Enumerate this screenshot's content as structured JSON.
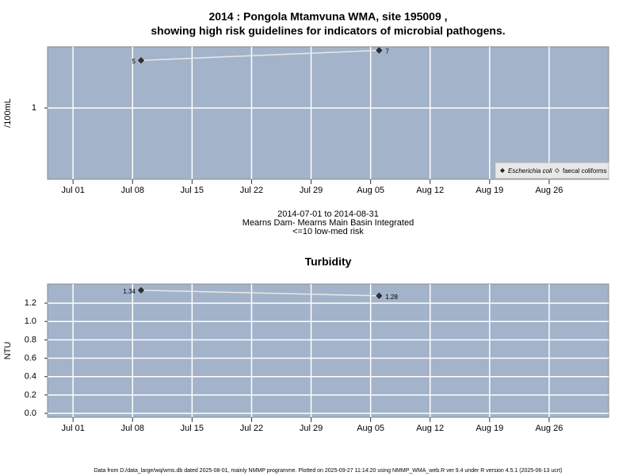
{
  "chart_data": [
    {
      "type": "line",
      "title": [
        "2014 : Pongola Mtamvuna WMA, site 195009 ,",
        "showing high risk guidelines for indicators of microbial pathogens."
      ],
      "ylabel": "/100mL",
      "x": [
        "2014-07-09",
        "2014-08-06"
      ],
      "series": [
        {
          "name": "Escherichia coli",
          "color": "#333333",
          "values": [
            5,
            7
          ]
        },
        {
          "name": "faecal coliforms",
          "color": "#ffffff",
          "values": [
            null,
            null
          ]
        }
      ],
      "xlim": [
        "2014-06-28",
        "2014-09-02"
      ],
      "xticks": [
        {
          "value": "2014-07-01",
          "label": "Jul 01"
        },
        {
          "value": "2014-07-08",
          "label": "Jul 08"
        },
        {
          "value": "2014-07-15",
          "label": "Jul 15"
        },
        {
          "value": "2014-07-22",
          "label": "Jul 22"
        },
        {
          "value": "2014-07-29",
          "label": "Jul 29"
        },
        {
          "value": "2014-08-05",
          "label": "Aug 05"
        },
        {
          "value": "2014-08-12",
          "label": "Aug 12"
        },
        {
          "value": "2014-08-19",
          "label": "Aug 19"
        },
        {
          "value": "2014-08-26",
          "label": "Aug 26"
        }
      ],
      "ylim": [
        0.09,
        7.9
      ],
      "yticks": [
        1
      ],
      "log_y": true,
      "grid": true,
      "legend": "bottom-right",
      "notes": [
        "2014-07-01 to 2014-08-31",
        "Mearns Dam- Mearns Main Basin Integrated",
        "<=10 low-med risk"
      ]
    },
    {
      "type": "line",
      "title": [
        "Turbidity"
      ],
      "ylabel": "NTU",
      "x": [
        "2014-07-09",
        "2014-08-06"
      ],
      "series": [
        {
          "name": "Turbidity",
          "color": "#333333",
          "values": [
            1.34,
            1.28
          ]
        }
      ],
      "xlim": [
        "2014-06-28",
        "2014-09-02"
      ],
      "xticks": [
        {
          "value": "2014-07-01",
          "label": "Jul 01"
        },
        {
          "value": "2014-07-08",
          "label": "Jul 08"
        },
        {
          "value": "2014-07-15",
          "label": "Jul 15"
        },
        {
          "value": "2014-07-22",
          "label": "Jul 22"
        },
        {
          "value": "2014-07-29",
          "label": "Jul 29"
        },
        {
          "value": "2014-08-05",
          "label": "Aug 05"
        },
        {
          "value": "2014-08-12",
          "label": "Aug 12"
        },
        {
          "value": "2014-08-19",
          "label": "Aug 19"
        },
        {
          "value": "2014-08-26",
          "label": "Aug 26"
        }
      ],
      "ylim": [
        -0.043,
        1.408
      ],
      "yticks": [
        {
          "value": 0,
          "label": "0.0"
        },
        0.2,
        0.4,
        0.6,
        0.8,
        {
          "value": 1,
          "label": "1.0"
        },
        1.2
      ],
      "log_y": false,
      "grid": true
    }
  ],
  "footer": "Data from D:/data_large/wq/wms.db dated 2025-08-01, mainly NMMP programme. Plotted on 2025-09-27 11:14:20 using NMMP_WMA_web.R ver 9.4 under R version 4.5.1 (2025-06-13 ucrt)"
}
